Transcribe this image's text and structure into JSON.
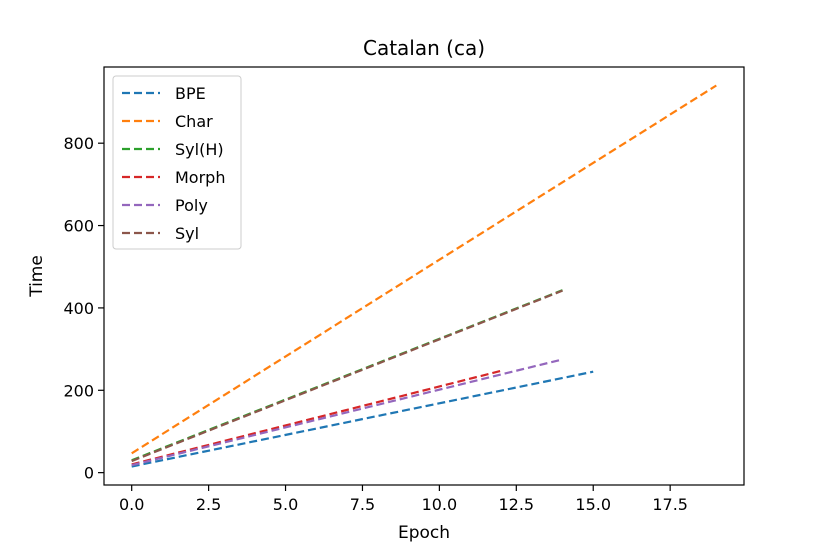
{
  "chart_data": {
    "type": "line",
    "title": "Catalan (ca)",
    "xlabel": "Epoch",
    "ylabel": "Time",
    "xlim": [
      -0.9,
      19.9
    ],
    "ylim": [
      -30,
      985
    ],
    "xticks": [
      0.0,
      2.5,
      5.0,
      7.5,
      10.0,
      12.5,
      15.0,
      17.5
    ],
    "xtick_labels": [
      "0.0",
      "2.5",
      "5.0",
      "7.5",
      "10.0",
      "12.5",
      "15.0",
      "17.5"
    ],
    "yticks": [
      0,
      200,
      400,
      600,
      800
    ],
    "ytick_labels": [
      "0",
      "200",
      "400",
      "600",
      "800"
    ],
    "grid": false,
    "legend_position": "top-left",
    "line_style": "dashed",
    "series": [
      {
        "name": "BPE",
        "color": "#1f77b4",
        "x": [
          0,
          15
        ],
        "y": [
          15,
          245
        ]
      },
      {
        "name": "Char",
        "color": "#ff7f0e",
        "x": [
          0,
          19
        ],
        "y": [
          47,
          940
        ]
      },
      {
        "name": "Syl(H)",
        "color": "#2ca02c",
        "x": [
          0,
          14
        ],
        "y": [
          30,
          443
        ]
      },
      {
        "name": "Morph",
        "color": "#d62728",
        "x": [
          0,
          12
        ],
        "y": [
          20,
          247
        ]
      },
      {
        "name": "Poly",
        "color": "#9467bd",
        "x": [
          0,
          14
        ],
        "y": [
          18,
          275
        ]
      },
      {
        "name": "Syl",
        "color": "#8c564b",
        "x": [
          0,
          14
        ],
        "y": [
          28,
          442
        ]
      }
    ]
  }
}
